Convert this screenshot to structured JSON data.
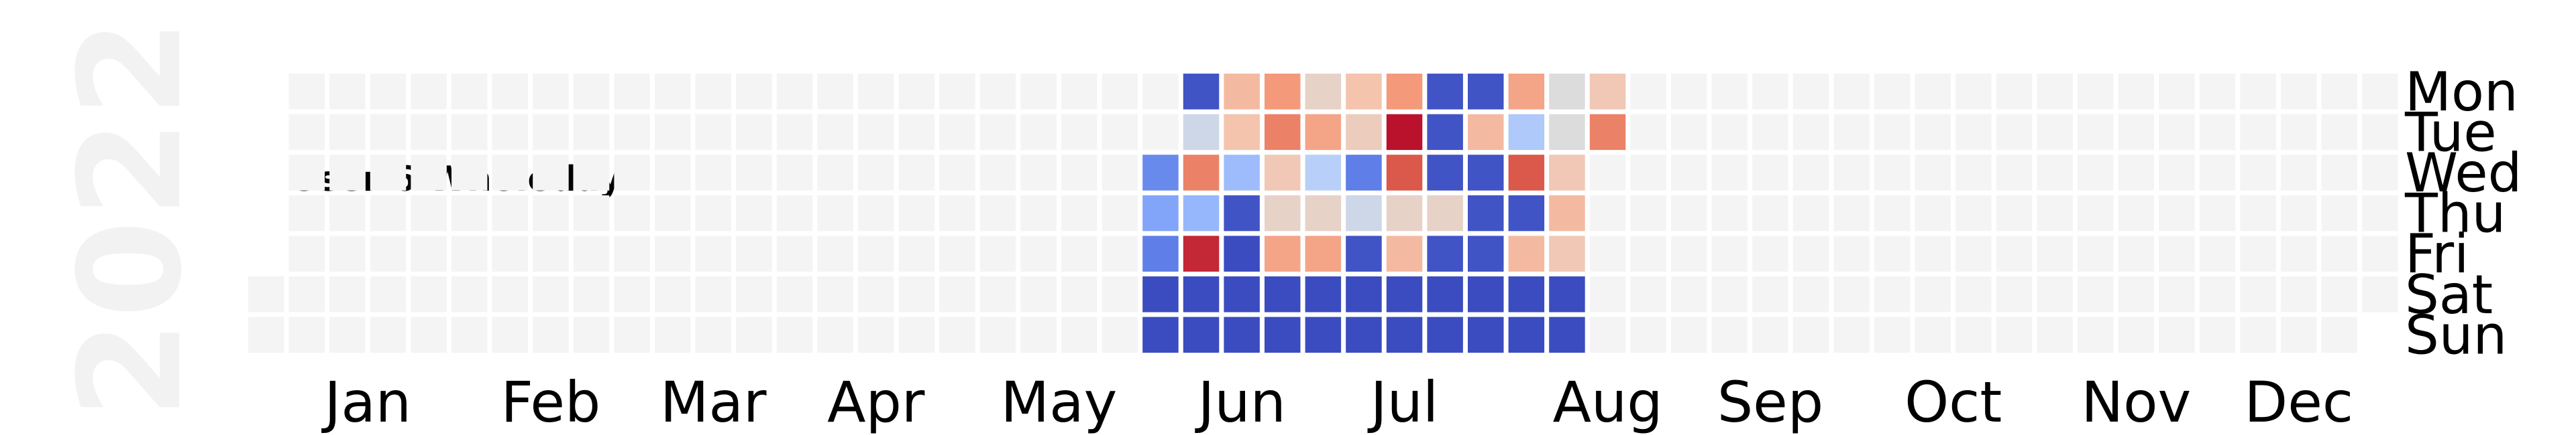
{
  "year_label": "2022",
  "chart_data": {
    "type": "heatmap",
    "title": "User 6 Wholeday",
    "xlabel": "",
    "ylabel": "",
    "colormap": "coolwarm",
    "empty_color": "#f4f4f4",
    "months": [
      "Jan",
      "Feb",
      "Mar",
      "Apr",
      "May",
      "Jun",
      "Jul",
      "Aug",
      "Sep",
      "Oct",
      "Nov",
      "Dec"
    ],
    "weekdays": [
      "Mon",
      "Tue",
      "Wed",
      "Thu",
      "Fri",
      "Sat",
      "Sun"
    ],
    "first_day_of_year": "2022-01-01",
    "values_start_date": "2022-05-30",
    "values_by_week": [
      [
        null,
        null,
        0.15,
        0.22,
        0.12,
        0.0,
        0.0
      ],
      [
        0.02,
        0.45,
        0.8,
        0.28,
        0.95,
        0.0,
        0.0
      ],
      [
        0.65,
        0.62,
        0.3,
        0.02,
        0.0,
        0.0,
        0.0
      ],
      [
        0.75,
        0.8,
        0.6,
        0.55,
        0.72,
        0.0,
        0.0
      ],
      [
        0.55,
        0.72,
        0.38,
        0.55,
        0.72,
        0.0,
        0.0
      ],
      [
        0.62,
        0.58,
        0.12,
        0.45,
        0.02,
        0.0,
        0.0
      ],
      [
        0.75,
        0.98,
        0.88,
        0.55,
        0.65,
        0.0,
        0.0
      ],
      [
        0.02,
        0.02,
        0.02,
        0.55,
        0.02,
        0.0,
        0.0
      ],
      [
        0.02,
        0.65,
        0.02,
        0.02,
        0.02,
        0.0,
        0.0
      ],
      [
        0.72,
        0.35,
        0.88,
        0.02,
        0.65,
        0.0,
        0.0
      ],
      [
        0.5,
        0.5,
        0.6,
        0.65,
        0.6,
        0.0,
        0.0
      ],
      [
        0.6,
        0.8,
        null,
        null,
        null,
        null,
        null
      ]
    ],
    "legend": false,
    "grid": false
  }
}
